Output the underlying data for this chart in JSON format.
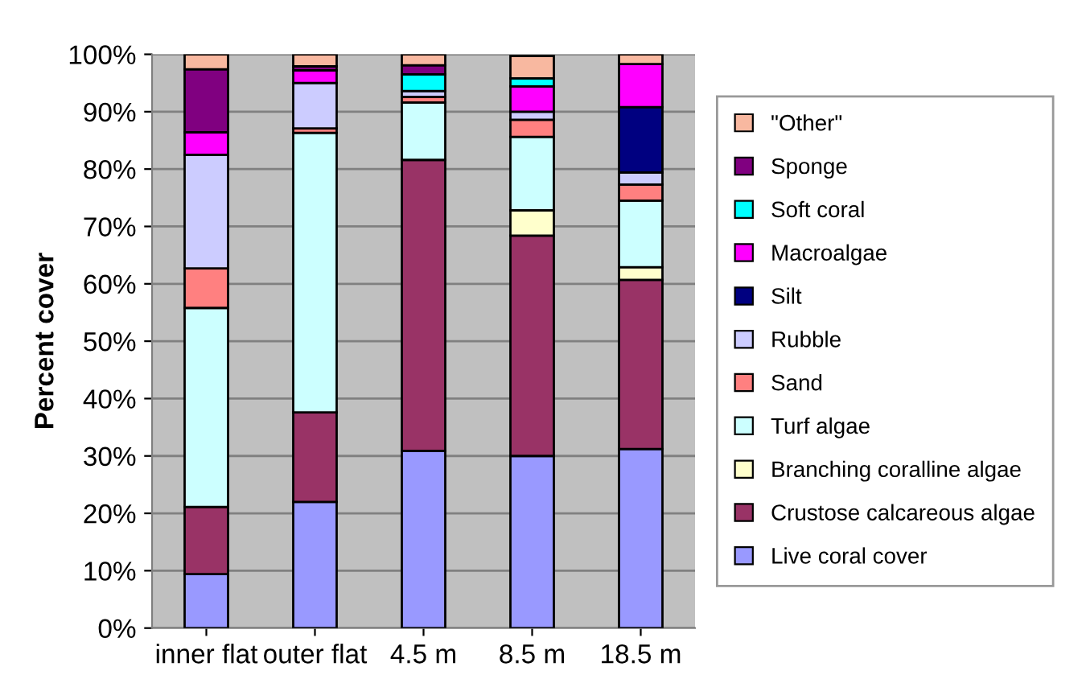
{
  "chart_data": {
    "type": "bar",
    "stacked": true,
    "ylabel": "Percent cover",
    "categories": [
      "inner flat",
      "outer flat",
      "4.5 m",
      "8.5 m",
      "18.5 m"
    ],
    "ylim": [
      0,
      100
    ],
    "yticks": [
      {
        "value": 0,
        "label": "0%"
      },
      {
        "value": 10,
        "label": "10%"
      },
      {
        "value": 20,
        "label": "20%"
      },
      {
        "value": 30,
        "label": "30%"
      },
      {
        "value": 40,
        "label": "40%"
      },
      {
        "value": 50,
        "label": "50%"
      },
      {
        "value": 60,
        "label": "60%"
      },
      {
        "value": 70,
        "label": "70%"
      },
      {
        "value": 80,
        "label": "80%"
      },
      {
        "value": 90,
        "label": "90%"
      },
      {
        "value": 100,
        "label": "100%"
      }
    ],
    "grid": "y",
    "legend": "right",
    "series": [
      {
        "name": "Live coral cover",
        "color": "#9999ff",
        "values": [
          9.4,
          22.0,
          30.9,
          30.0,
          31.2
        ]
      },
      {
        "name": "Crustose calcareous algae",
        "color": "#993366",
        "values": [
          11.7,
          15.6,
          50.7,
          38.4,
          29.5
        ]
      },
      {
        "name": "Branching coralline algae",
        "color": "#ffffcc",
        "values": [
          null,
          null,
          null,
          4.4,
          2.2
        ]
      },
      {
        "name": "Turf algae",
        "color": "#ccffff",
        "values": [
          34.7,
          48.7,
          10.0,
          12.8,
          11.6
        ]
      },
      {
        "name": "Sand",
        "color": "#ff8080",
        "values": [
          6.9,
          0.8,
          1.0,
          3.0,
          2.8
        ]
      },
      {
        "name": "Rubble",
        "color": "#ccccff",
        "values": [
          19.8,
          7.9,
          1.0,
          1.4,
          2.1
        ]
      },
      {
        "name": "Silt",
        "color": "#000080",
        "values": [
          null,
          null,
          null,
          null,
          11.4
        ]
      },
      {
        "name": "Macroalgae",
        "color": "#ff00ff",
        "values": [
          3.9,
          2.2,
          null,
          4.4,
          7.5
        ]
      },
      {
        "name": "Soft coral",
        "color": "#00ffff",
        "values": [
          null,
          null,
          2.9,
          1.4,
          null
        ]
      },
      {
        "name": "Sponge",
        "color": "#800080",
        "values": [
          11.0,
          0.7,
          1.6,
          null,
          null
        ]
      },
      {
        "name": "\"Other\"",
        "color": "#f8b8a0",
        "values": [
          2.6,
          2.1,
          1.9,
          3.9,
          1.7
        ]
      }
    ]
  }
}
